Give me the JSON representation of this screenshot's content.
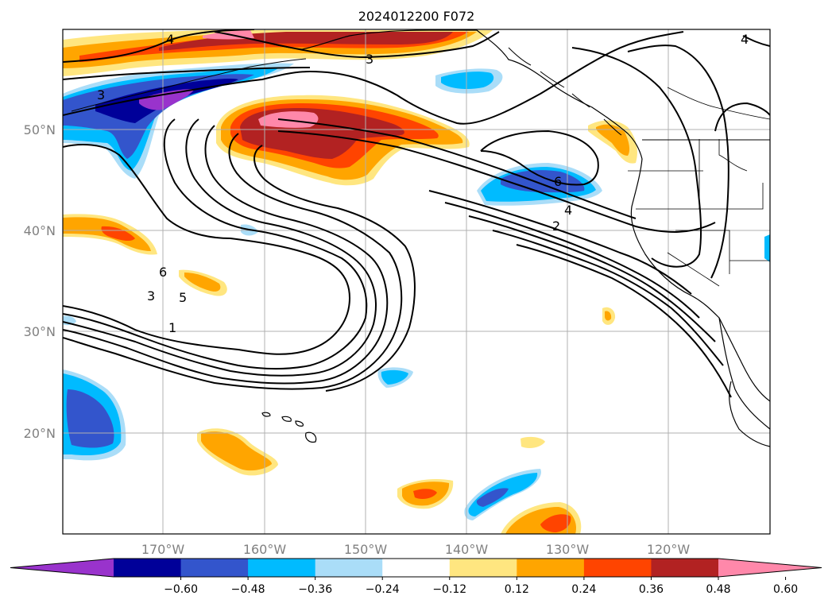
{
  "title": "2024012200 F072",
  "longitude_labels": [
    "170°W",
    "160°W",
    "150°W",
    "140°W",
    "130°W",
    "120°W"
  ],
  "latitude_labels": [
    "50°N",
    "40°N",
    "30°N",
    "20°N"
  ],
  "contour_labels": [
    "4",
    "3",
    "3",
    "6",
    "4",
    "2",
    "6",
    "5",
    "3",
    "1",
    "4"
  ],
  "colorbar": {
    "ticks": [
      "−0.60",
      "−0.48",
      "−0.36",
      "−0.24",
      "−0.12",
      "0.12",
      "0.24",
      "0.36",
      "0.48",
      "0.60"
    ],
    "colors": [
      "#9933cc",
      "#000099",
      "#3355cc",
      "#00bbff",
      "#aaddf8",
      "#ffffff",
      "#ffe680",
      "#ffa500",
      "#ff4400",
      "#b22222",
      "#ff88aa"
    ],
    "extend": "both"
  },
  "colors": {
    "contour": "#000000",
    "grid": "#b0b0b0",
    "axis_label": "#808080"
  }
}
